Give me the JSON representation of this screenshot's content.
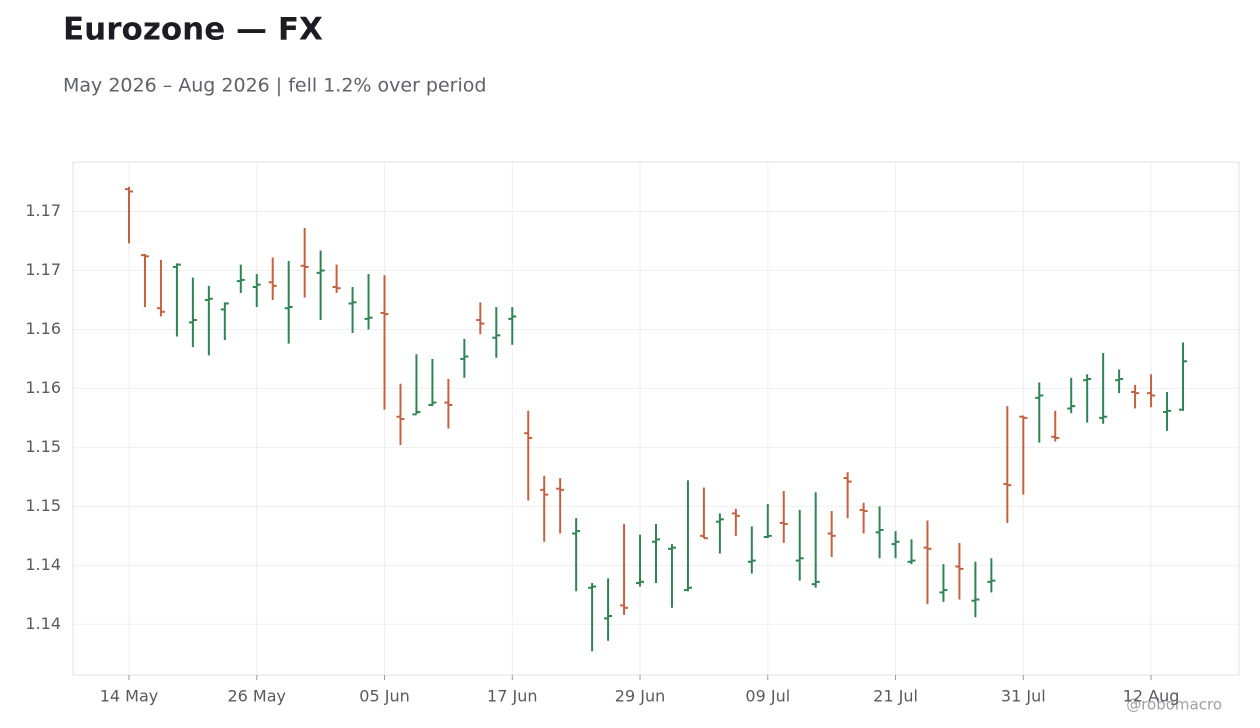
{
  "chart_data": {
    "type": "ohlc",
    "title": "Eurozone — FX",
    "subtitle": "May 2026 – Aug 2026 | fell 1.2% over period",
    "credit": "@robomacro",
    "categories": [
      "14 May",
      null,
      null,
      null,
      null,
      null,
      null,
      null,
      "26 May",
      null,
      null,
      null,
      null,
      null,
      null,
      null,
      "05 Jun",
      null,
      null,
      null,
      null,
      null,
      null,
      null,
      "17 Jun",
      null,
      null,
      null,
      null,
      null,
      null,
      null,
      "29 Jun",
      null,
      null,
      null,
      null,
      null,
      null,
      null,
      "09 Jul",
      null,
      null,
      null,
      null,
      null,
      null,
      null,
      "21 Jul",
      null,
      null,
      null,
      null,
      null,
      null,
      null,
      "31 Jul",
      null,
      null,
      null,
      null,
      null,
      null,
      null,
      "12 Aug",
      null,
      null
    ],
    "open": [
      1.1719,
      1.1663,
      1.1618,
      1.1653,
      1.1606,
      1.1625,
      1.1617,
      1.1641,
      1.1636,
      1.164,
      1.1618,
      1.1654,
      1.1648,
      1.1636,
      1.1622,
      1.1609,
      1.1614,
      1.1526,
      1.1528,
      1.1536,
      1.1538,
      1.1575,
      1.1608,
      1.1593,
      1.1609,
      1.1512,
      1.1464,
      1.1465,
      1.1427,
      1.1381,
      1.1355,
      1.1366,
      1.1385,
      1.142,
      1.1414,
      1.1379,
      1.1425,
      1.1437,
      1.1444,
      1.1403,
      1.1424,
      1.1436,
      1.1404,
      1.1384,
      1.1427,
      1.1474,
      1.1447,
      1.1428,
      1.1418,
      1.1403,
      1.1415,
      1.1377,
      1.1399,
      1.137,
      1.1386,
      1.1469,
      1.1526,
      1.1542,
      1.1509,
      1.1533,
      1.1557,
      1.1525,
      1.1557,
      1.1547,
      1.1546,
      1.153,
      1.1532
    ],
    "high": [
      1.1721,
      1.1664,
      1.1659,
      1.1656,
      1.1644,
      1.1637,
      1.1623,
      1.1655,
      1.1647,
      1.1661,
      1.1658,
      1.1686,
      1.1667,
      1.1655,
      1.1636,
      1.1647,
      1.1646,
      1.1554,
      1.1579,
      1.1575,
      1.1558,
      1.1592,
      1.1623,
      1.1619,
      1.1619,
      1.1531,
      1.1476,
      1.1474,
      1.144,
      1.1385,
      1.1389,
      1.1435,
      1.1426,
      1.1435,
      1.1418,
      1.1472,
      1.1466,
      1.1444,
      1.1448,
      1.1433,
      1.1452,
      1.1463,
      1.1447,
      1.1462,
      1.1446,
      1.1479,
      1.1453,
      1.145,
      1.1429,
      1.1422,
      1.1438,
      1.1401,
      1.1419,
      1.1403,
      1.1406,
      1.1535,
      1.1527,
      1.1555,
      1.1531,
      1.1559,
      1.1562,
      1.158,
      1.1566,
      1.1553,
      1.1562,
      1.1547,
      1.1589
    ],
    "low": [
      1.1673,
      1.1619,
      1.1611,
      1.1594,
      1.1585,
      1.1578,
      1.1591,
      1.1631,
      1.1619,
      1.1625,
      1.1588,
      1.1627,
      1.1608,
      1.1631,
      1.1597,
      1.16,
      1.1532,
      1.1502,
      1.1528,
      1.1535,
      1.1516,
      1.1559,
      1.1596,
      1.1576,
      1.1587,
      1.1455,
      1.142,
      1.1427,
      1.1378,
      1.1327,
      1.1336,
      1.1358,
      1.1382,
      1.1385,
      1.1364,
      1.1378,
      1.1423,
      1.141,
      1.1425,
      1.1393,
      1.1423,
      1.1419,
      1.1387,
      1.1381,
      1.1407,
      1.144,
      1.1427,
      1.1406,
      1.1406,
      1.1401,
      1.1367,
      1.1369,
      1.1371,
      1.1356,
      1.1377,
      1.1436,
      1.146,
      1.1504,
      1.1505,
      1.1529,
      1.1521,
      1.152,
      1.1546,
      1.1533,
      1.1534,
      1.1514,
      1.1531
    ],
    "close": [
      1.1717,
      1.1662,
      1.1615,
      1.1655,
      1.1608,
      1.1626,
      1.1622,
      1.1642,
      1.1638,
      1.1637,
      1.1619,
      1.1653,
      1.165,
      1.1635,
      1.1623,
      1.161,
      1.1613,
      1.1524,
      1.153,
      1.1538,
      1.1536,
      1.1577,
      1.1605,
      1.1595,
      1.1611,
      1.1508,
      1.146,
      1.1464,
      1.1429,
      1.1382,
      1.1357,
      1.1364,
      1.1386,
      1.1422,
      1.1415,
      1.1381,
      1.1423,
      1.1439,
      1.1442,
      1.1404,
      1.1425,
      1.1435,
      1.1406,
      1.1386,
      1.1425,
      1.1471,
      1.1446,
      1.143,
      1.142,
      1.1404,
      1.1414,
      1.1379,
      1.1397,
      1.1371,
      1.1387,
      1.1468,
      1.1525,
      1.1544,
      1.1508,
      1.1535,
      1.1558,
      1.1526,
      1.1558,
      1.1546,
      1.1544,
      1.1531,
      1.1573
    ],
    "up_color": "#2e8452",
    "down_color": "#c4623f",
    "ylim": [
      1.1307,
      1.1742
    ],
    "yticks": [
      {
        "value": 1.135,
        "label": "1.14"
      },
      {
        "value": 1.14,
        "label": "1.14"
      },
      {
        "value": 1.145,
        "label": "1.15"
      },
      {
        "value": 1.15,
        "label": "1.15"
      },
      {
        "value": 1.155,
        "label": "1.16"
      },
      {
        "value": 1.16,
        "label": "1.16"
      },
      {
        "value": 1.165,
        "label": "1.17"
      },
      {
        "value": 1.17,
        "label": "1.17"
      }
    ],
    "grid": true
  }
}
